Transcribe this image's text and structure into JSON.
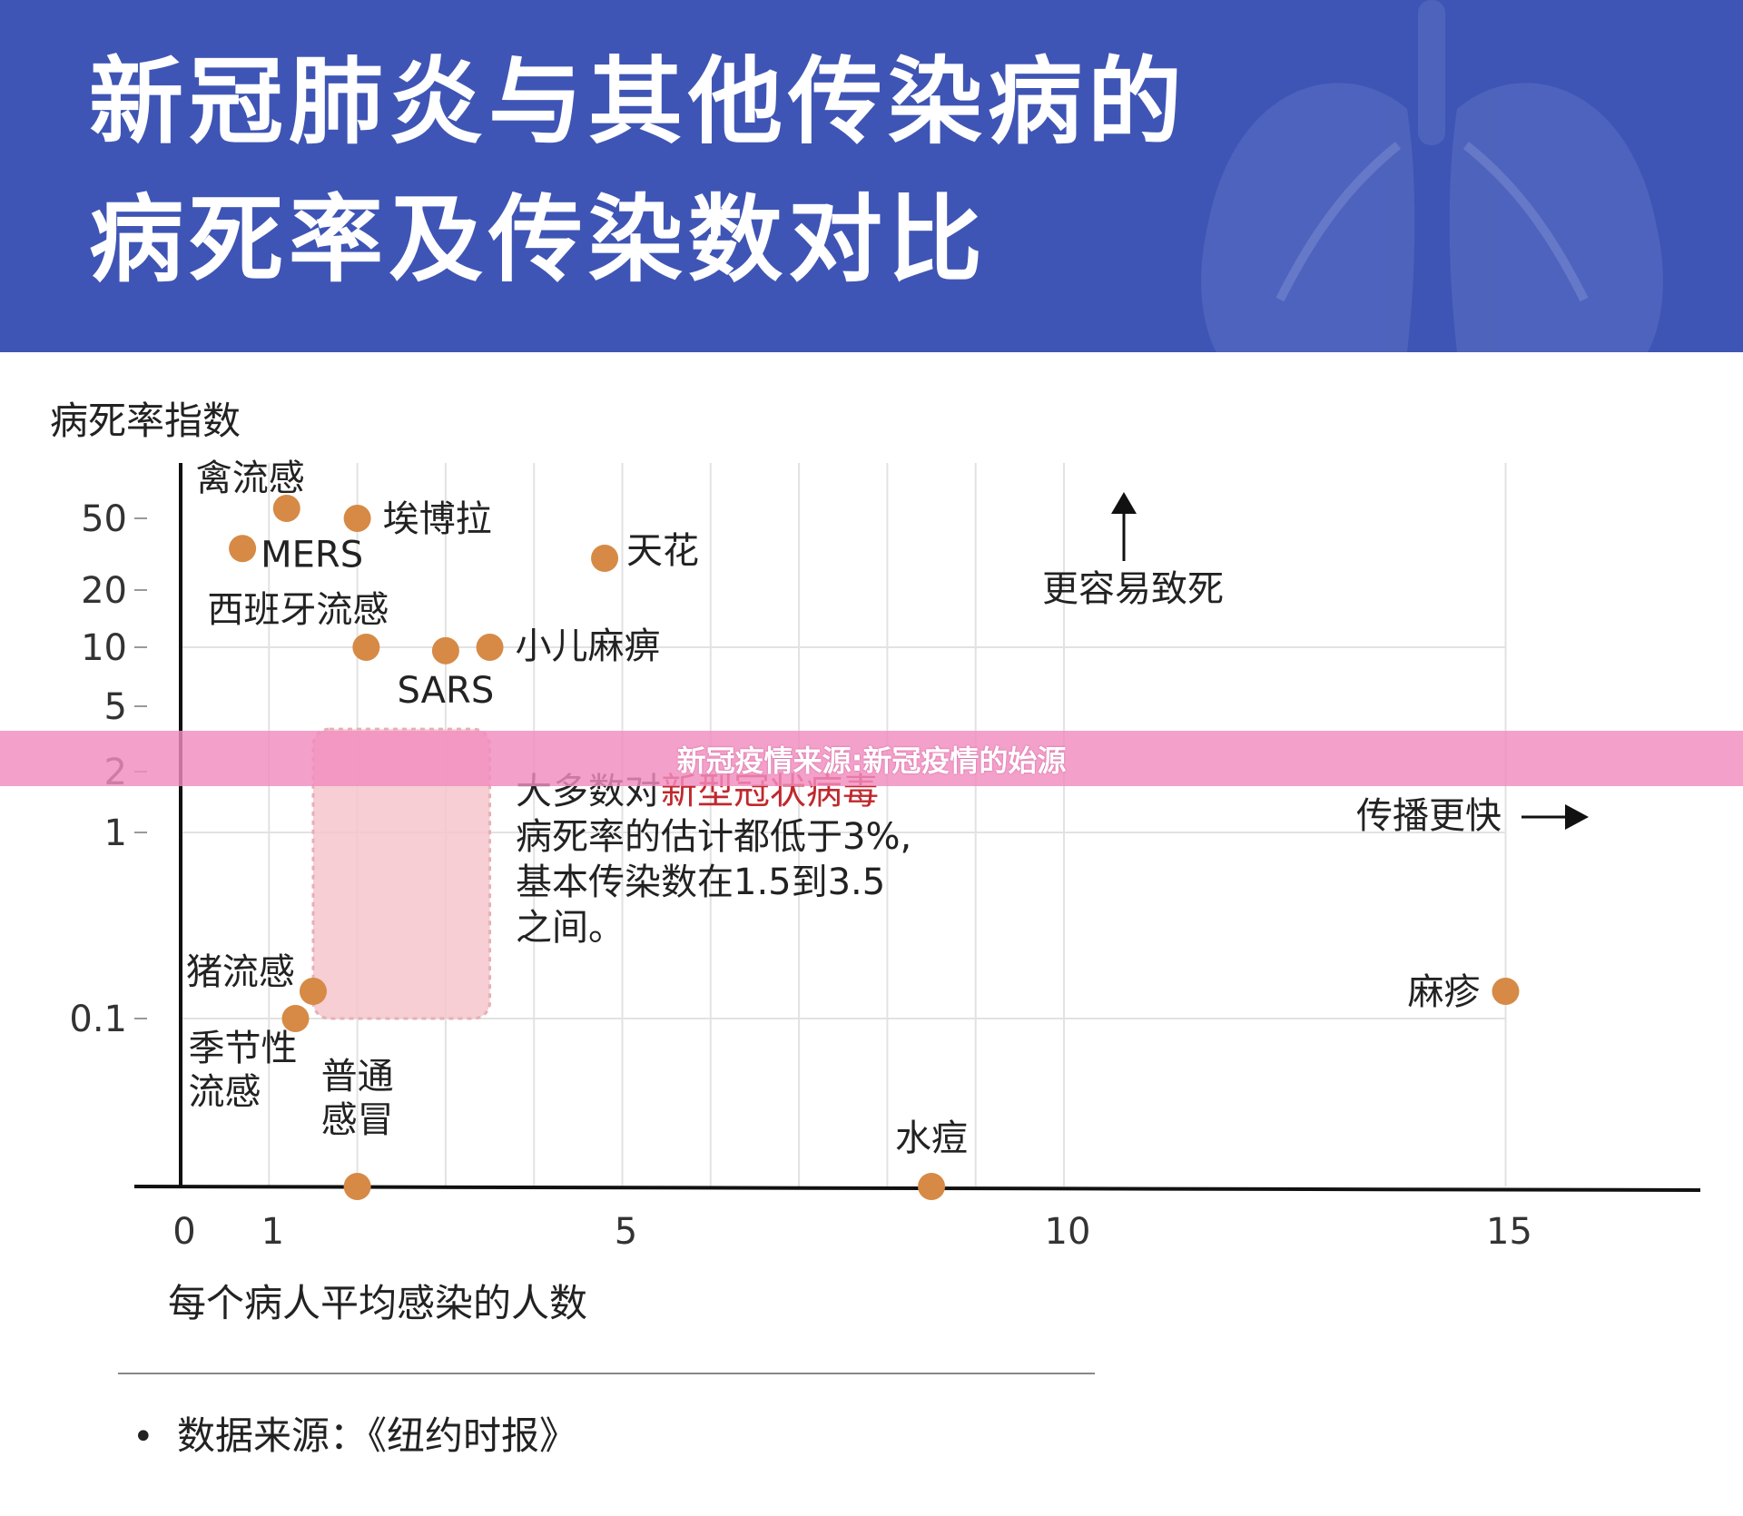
{
  "header": {
    "title_line1": "新冠肺炎与其他传染病的",
    "title_line2": "病死率及传染数对比",
    "bg_color": "#3f55b5"
  },
  "banner": {
    "text": "新冠疫情来源:新冠疫情的始源",
    "bg_color": "#f08cbe"
  },
  "chart_data": {
    "type": "scatter",
    "xlabel": "每个病人平均感染的人数",
    "ylabel": "病死率指数",
    "x_ticks": [
      "0",
      "1",
      "5",
      "10",
      "15"
    ],
    "x_tick_values": [
      0,
      1,
      5,
      10,
      15
    ],
    "y_ticks": [
      "50",
      "20",
      "10",
      "5",
      "2",
      "1",
      "0.1"
    ],
    "y_tick_values": [
      50,
      20,
      10,
      5,
      2,
      1,
      0.1
    ],
    "y_scale": "log",
    "xlim": [
      0,
      17.2
    ],
    "grid": true,
    "point_color": "#d68a45",
    "points": [
      {
        "label": "禽流感",
        "x": 1.2,
        "y": 60
      },
      {
        "label": "埃博拉",
        "x": 2.0,
        "y": 50
      },
      {
        "label": "MERS",
        "x": 0.7,
        "y": 34
      },
      {
        "label": "天花",
        "x": 4.8,
        "y": 30
      },
      {
        "label": "西班牙流感",
        "x": 2.1,
        "y": 10
      },
      {
        "label": "SARS",
        "x": 3.0,
        "y": 9.6
      },
      {
        "label": "小儿麻痹",
        "x": 3.5,
        "y": 10
      },
      {
        "label": "猪流感",
        "x": 1.5,
        "y": 0.14
      },
      {
        "label": "季节性流感",
        "x": 1.3,
        "y": 0.1
      },
      {
        "label": "普通感冒",
        "x": 2.0,
        "y": 0.01
      },
      {
        "label": "水痘",
        "x": 8.5,
        "y": 0.01
      },
      {
        "label": "麻疹",
        "x": 15.0,
        "y": 0.14
      }
    ],
    "covid_region": {
      "x_range": [
        1.5,
        3.5
      ],
      "y_range": [
        0.1,
        3
      ],
      "color": "#f4c6cc",
      "note_prefix": "大多数对",
      "note_highlight": "新型冠状病毒",
      "note_line2": "病死率的估计都低于3%,",
      "note_line3": "基本传染数在1.5到3.5",
      "note_line4": "之间。",
      "highlight_color": "#c0282d"
    },
    "annotations": {
      "deadlier": "更容易致死",
      "faster": "传播更快"
    }
  },
  "footer": {
    "bullet": "•",
    "source": "数据来源：《纽约时报》"
  }
}
